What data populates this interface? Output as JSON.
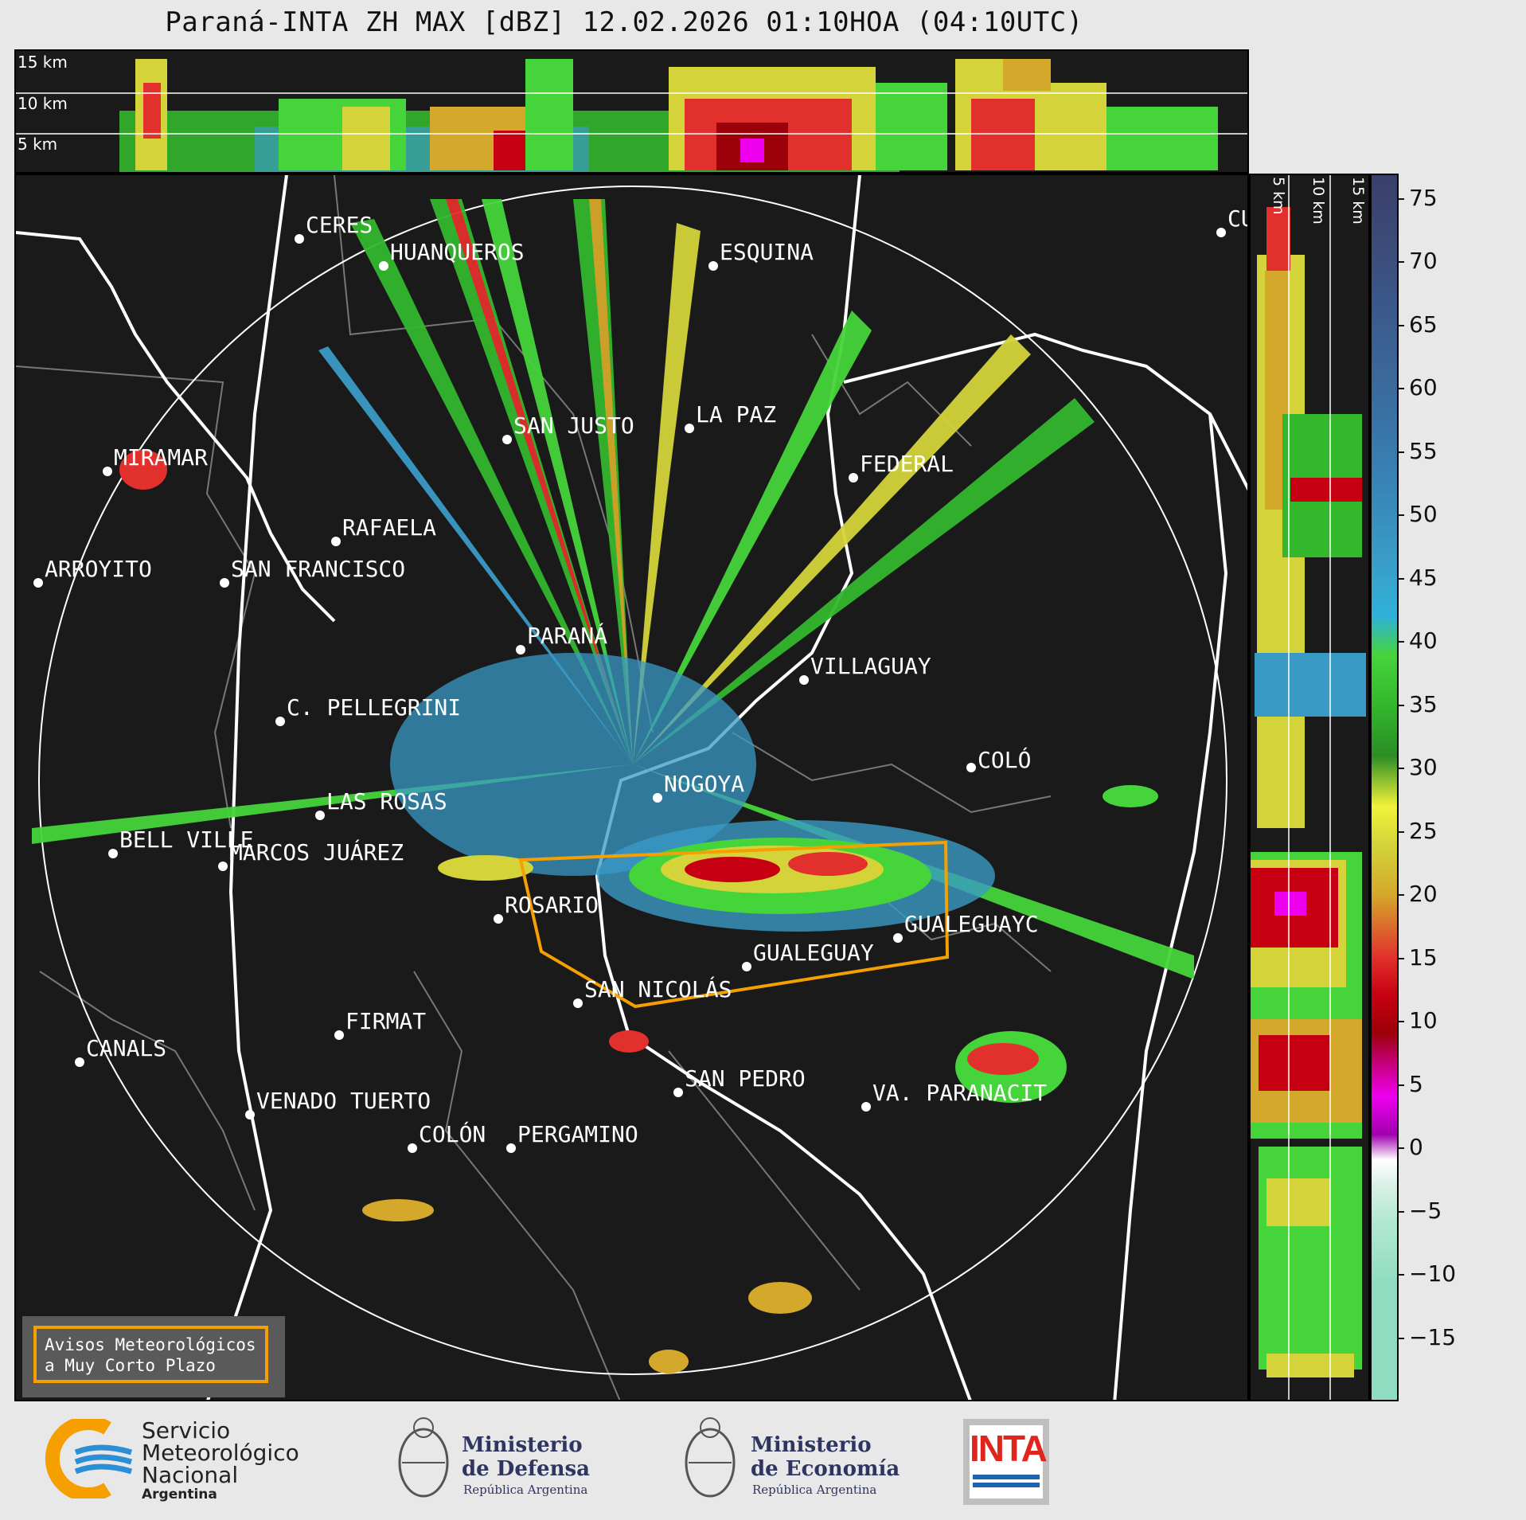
{
  "title": "Paraná-INTA ZH MAX [dBZ] 12.02.2026 01:10HOA (04:10UTC)",
  "top_panel": {
    "altitudes": [
      "15 km",
      "10 km",
      "5 km"
    ]
  },
  "side_panel": {
    "altitudes": [
      "5 km",
      "10 km",
      "15 km"
    ]
  },
  "colorbar": {
    "unit": "dBZ",
    "ticks": [
      "75",
      "70",
      "65",
      "60",
      "55",
      "50",
      "45",
      "40",
      "35",
      "30",
      "25",
      "20",
      "15",
      "10",
      "5",
      "0",
      "−5",
      "−10",
      "−15"
    ],
    "stops": [
      {
        "from": -20,
        "color": "#3a3f6a"
      },
      {
        "from": -15,
        "color": "#3c4a78"
      },
      {
        "from": -10,
        "color": "#3b5789"
      },
      {
        "from": -5,
        "color": "#3b6597"
      },
      {
        "from": 0,
        "color": "#3a74a6"
      },
      {
        "from": 5,
        "color": "#3886b8"
      },
      {
        "from": 10,
        "color": "#3a9ac6"
      },
      {
        "from": 15,
        "color": "#2fb2d8"
      },
      {
        "from": 18,
        "color": "#46d43b"
      },
      {
        "from": 22,
        "color": "#33b72d"
      },
      {
        "from": 26,
        "color": "#2b8e25"
      },
      {
        "from": 30,
        "color": "#f2f23a"
      },
      {
        "from": 33,
        "color": "#d4d43a"
      },
      {
        "from": 37,
        "color": "#d4a82a"
      },
      {
        "from": 42,
        "color": "#e2302c"
      },
      {
        "from": 45,
        "color": "#c60011"
      },
      {
        "from": 48,
        "color": "#9c0008"
      },
      {
        "from": 50,
        "color": "#c0006a"
      },
      {
        "from": 53,
        "color": "#ee00ee"
      },
      {
        "from": 56,
        "color": "#a000b0"
      },
      {
        "from": 58,
        "color": "#ffffff"
      },
      {
        "from": 60,
        "color": "#d8f0e6"
      },
      {
        "from": 63,
        "color": "#b0e8d0"
      },
      {
        "from": 68,
        "color": "#8fdcc0"
      }
    ]
  },
  "cities": [
    {
      "name": "CERES"
    },
    {
      "name": "HUANQUEROS"
    },
    {
      "name": "ESQUINA"
    },
    {
      "name": "CU"
    },
    {
      "name": "MIRAMAR"
    },
    {
      "name": "SAN JUSTO"
    },
    {
      "name": "LA PAZ"
    },
    {
      "name": "FEDERAL"
    },
    {
      "name": "RAFAELA"
    },
    {
      "name": "ARROYITO"
    },
    {
      "name": "SAN FRANCISCO"
    },
    {
      "name": "PARANÁ"
    },
    {
      "name": "VILLAGUAY"
    },
    {
      "name": "C. PELLEGRINI"
    },
    {
      "name": "COLÓ"
    },
    {
      "name": "NOGOYA"
    },
    {
      "name": "LAS ROSAS"
    },
    {
      "name": "BELL VILLE"
    },
    {
      "name": "MARCOS JUÁREZ"
    },
    {
      "name": "ROSARIO"
    },
    {
      "name": "GUALEGUAYC"
    },
    {
      "name": "GUALEGUAY"
    },
    {
      "name": "SAN NICOLÁS"
    },
    {
      "name": "FIRMAT"
    },
    {
      "name": "CANALS"
    },
    {
      "name": "SAN PEDRO"
    },
    {
      "name": "VA. PARANACIT"
    },
    {
      "name": "VENADO TUERTO"
    },
    {
      "name": "COLÓN"
    },
    {
      "name": "PERGAMINO"
    }
  ],
  "warning_box": {
    "line1": "Avisos Meteorológicos",
    "line2": "a Muy Corto Plazo"
  },
  "logos": {
    "smn": {
      "line1": "Servicio",
      "line2": "Meteorológico",
      "line3": "Nacional",
      "line4": "Argentina"
    },
    "defensa": {
      "line1": "Ministerio",
      "line2": "de Defensa",
      "line3": "República Argentina"
    },
    "economia": {
      "line1": "Ministerio",
      "line2": "de Economía",
      "line3": "República Argentina"
    },
    "inta": {
      "text": "INTA"
    }
  },
  "colors": {
    "warning": "#f5a000",
    "background": "#1a1a1a",
    "inta_red": "#e0261c",
    "inta_blue": "#1d63ad"
  }
}
